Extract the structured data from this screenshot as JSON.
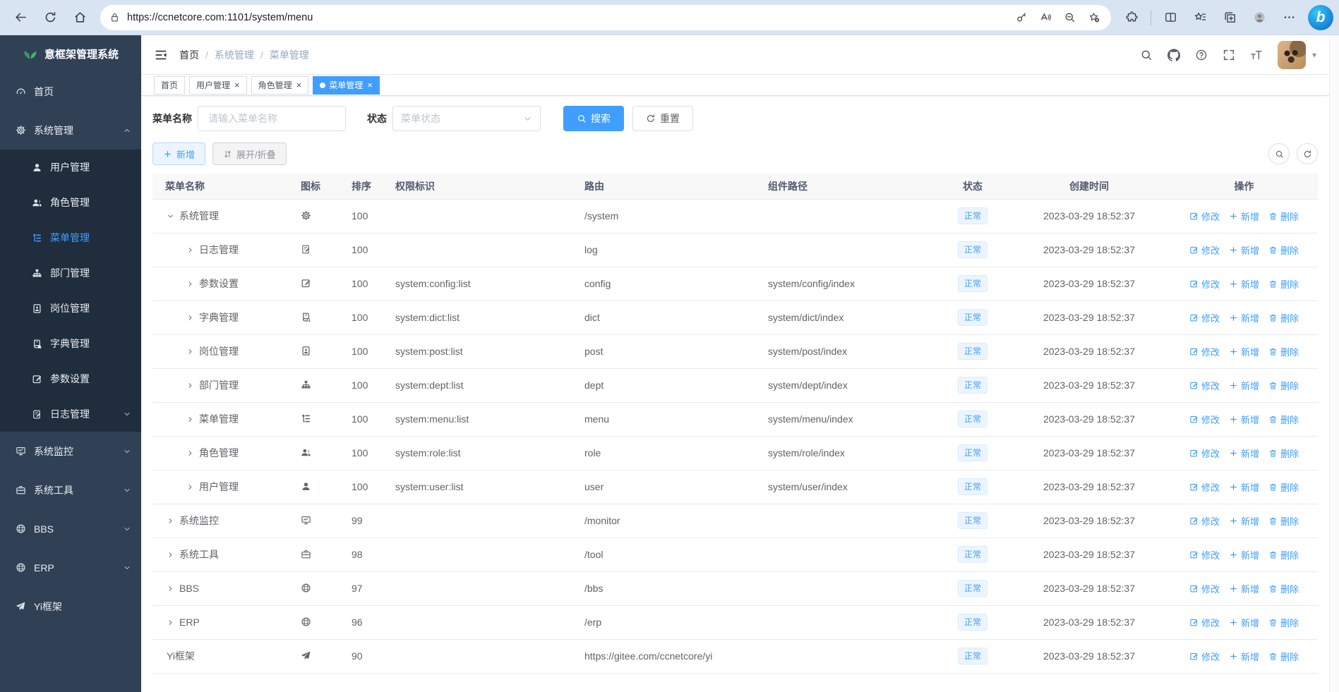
{
  "browser": {
    "url": "https://ccnetcore.com:1101/system/menu",
    "nav_icons": [
      "back-icon",
      "reload-icon",
      "home-icon"
    ],
    "address_lock_icon": "lock-icon",
    "address_icons": [
      "key-icon",
      "read-aloud-icon",
      "zoom-out-icon",
      "add-favorite-icon"
    ],
    "toolbar_icons": [
      "extensions-icon",
      "split-screen-icon",
      "favorites-icon",
      "collections-icon",
      "profile-icon",
      "more-icon"
    ],
    "assistant_icon": "bing-chat-icon"
  },
  "sidebar": {
    "logo_icon": "leaf-icon",
    "title": "意框架管理系统",
    "items": [
      {
        "key": "home",
        "label": "首页",
        "icon": "dashboard-icon",
        "type": "root"
      },
      {
        "key": "system",
        "label": "系统管理",
        "icon": "gear-icon",
        "type": "root",
        "chevron": "up",
        "expanded": true
      },
      {
        "key": "user",
        "label": "用户管理",
        "icon": "user-icon",
        "type": "sub"
      },
      {
        "key": "role",
        "label": "角色管理",
        "icon": "users-icon",
        "type": "sub"
      },
      {
        "key": "menu",
        "label": "菜单管理",
        "icon": "menu-list-icon",
        "type": "sub",
        "active": true
      },
      {
        "key": "dept",
        "label": "部门管理",
        "icon": "org-tree-icon",
        "type": "sub"
      },
      {
        "key": "post",
        "label": "岗位管理",
        "icon": "id-badge-icon",
        "type": "sub"
      },
      {
        "key": "dict",
        "label": "字典管理",
        "icon": "dictionary-icon",
        "type": "sub"
      },
      {
        "key": "config",
        "label": "参数设置",
        "icon": "edit-square-icon",
        "type": "sub"
      },
      {
        "key": "log",
        "label": "日志管理",
        "icon": "log-icon",
        "type": "sub",
        "chevron": "down"
      },
      {
        "key": "monitor",
        "label": "系统监控",
        "icon": "monitor-icon",
        "type": "root",
        "chevron": "down"
      },
      {
        "key": "tool",
        "label": "系统工具",
        "icon": "toolbox-icon",
        "type": "root",
        "chevron": "down"
      },
      {
        "key": "bbs",
        "label": "BBS",
        "icon": "globe-icon",
        "type": "root",
        "chevron": "down"
      },
      {
        "key": "erp",
        "label": "ERP",
        "icon": "globe-icon",
        "type": "root",
        "chevron": "down"
      },
      {
        "key": "yi",
        "label": "Yi框架",
        "icon": "paper-plane-icon",
        "type": "root"
      }
    ]
  },
  "header": {
    "breadcrumb": [
      "首页",
      "系统管理",
      "菜单管理"
    ],
    "action_icons": [
      "search-icon",
      "github-icon",
      "question-icon",
      "fullscreen-icon",
      "font-size-icon"
    ],
    "avatar": "user-avatar",
    "caret_icon": "caret-down-icon"
  },
  "tabs": [
    {
      "key": "home",
      "label": "首页",
      "closable": false,
      "active": false
    },
    {
      "key": "user",
      "label": "用户管理",
      "closable": true,
      "active": false
    },
    {
      "key": "role",
      "label": "角色管理",
      "closable": true,
      "active": false
    },
    {
      "key": "menu",
      "label": "菜单管理",
      "closable": true,
      "active": true
    }
  ],
  "filters": {
    "name_label": "菜单名称",
    "name_placeholder": "请输入菜单名称",
    "name_value": "",
    "status_label": "状态",
    "status_placeholder": "菜单状态",
    "search_label": "搜索",
    "reset_label": "重置"
  },
  "toolbar": {
    "add_label": "新增",
    "toggle_label": "展开/折叠",
    "mini_icons": [
      "search-icon",
      "refresh-icon"
    ]
  },
  "table": {
    "columns": [
      "菜单名称",
      "图标",
      "排序",
      "权限标识",
      "路由",
      "组件路径",
      "状态",
      "创建时间",
      "操作"
    ],
    "row_actions": [
      {
        "key": "edit",
        "label": "修改",
        "icon": "edit-square-icon"
      },
      {
        "key": "add",
        "label": "新增",
        "icon": "plus-icon"
      },
      {
        "key": "delete",
        "label": "删除",
        "icon": "trash-icon"
      }
    ],
    "rows": [
      {
        "name": "系统管理",
        "icon": "gear-icon",
        "order": "100",
        "perms": "",
        "path": "/system",
        "component": "",
        "status": "正常",
        "created": "2023-03-29 18:52:37",
        "level": 0,
        "arrow": "expanded"
      },
      {
        "name": "日志管理",
        "icon": "log-icon",
        "order": "100",
        "perms": "",
        "path": "log",
        "component": "",
        "status": "正常",
        "created": "2023-03-29 18:52:37",
        "level": 1,
        "arrow": "collapsed"
      },
      {
        "name": "参数设置",
        "icon": "edit-square-icon",
        "order": "100",
        "perms": "system:config:list",
        "path": "config",
        "component": "system/config/index",
        "status": "正常",
        "created": "2023-03-29 18:52:37",
        "level": 1,
        "arrow": "collapsed"
      },
      {
        "name": "字典管理",
        "icon": "dictionary-icon",
        "order": "100",
        "perms": "system:dict:list",
        "path": "dict",
        "component": "system/dict/index",
        "status": "正常",
        "created": "2023-03-29 18:52:37",
        "level": 1,
        "arrow": "collapsed"
      },
      {
        "name": "岗位管理",
        "icon": "id-badge-icon",
        "order": "100",
        "perms": "system:post:list",
        "path": "post",
        "component": "system/post/index",
        "status": "正常",
        "created": "2023-03-29 18:52:37",
        "level": 1,
        "arrow": "collapsed"
      },
      {
        "name": "部门管理",
        "icon": "org-tree-icon",
        "order": "100",
        "perms": "system:dept:list",
        "path": "dept",
        "component": "system/dept/index",
        "status": "正常",
        "created": "2023-03-29 18:52:37",
        "level": 1,
        "arrow": "collapsed"
      },
      {
        "name": "菜单管理",
        "icon": "menu-list-icon",
        "order": "100",
        "perms": "system:menu:list",
        "path": "menu",
        "component": "system/menu/index",
        "status": "正常",
        "created": "2023-03-29 18:52:37",
        "level": 1,
        "arrow": "collapsed"
      },
      {
        "name": "角色管理",
        "icon": "users-icon",
        "order": "100",
        "perms": "system:role:list",
        "path": "role",
        "component": "system/role/index",
        "status": "正常",
        "created": "2023-03-29 18:52:37",
        "level": 1,
        "arrow": "collapsed"
      },
      {
        "name": "用户管理",
        "icon": "user-icon",
        "order": "100",
        "perms": "system:user:list",
        "path": "user",
        "component": "system/user/index",
        "status": "正常",
        "created": "2023-03-29 18:52:37",
        "level": 1,
        "arrow": "collapsed"
      },
      {
        "name": "系统监控",
        "icon": "monitor-icon",
        "order": "99",
        "perms": "",
        "path": "/monitor",
        "component": "",
        "status": "正常",
        "created": "2023-03-29 18:52:37",
        "level": 0,
        "arrow": "collapsed"
      },
      {
        "name": "系统工具",
        "icon": "toolbox-icon",
        "order": "98",
        "perms": "",
        "path": "/tool",
        "component": "",
        "status": "正常",
        "created": "2023-03-29 18:52:37",
        "level": 0,
        "arrow": "collapsed"
      },
      {
        "name": "BBS",
        "icon": "globe-icon",
        "order": "97",
        "perms": "",
        "path": "/bbs",
        "component": "",
        "status": "正常",
        "created": "2023-03-29 18:52:37",
        "level": 0,
        "arrow": "collapsed"
      },
      {
        "name": "ERP",
        "icon": "globe-icon",
        "order": "96",
        "perms": "",
        "path": "/erp",
        "component": "",
        "status": "正常",
        "created": "2023-03-29 18:52:37",
        "level": 0,
        "arrow": "collapsed"
      },
      {
        "name": "Yi框架",
        "icon": "paper-plane-icon",
        "order": "90",
        "perms": "",
        "path": "https://gitee.com/ccnetcore/yi",
        "component": "",
        "status": "正常",
        "created": "2023-03-29 18:52:37",
        "level": 0,
        "arrow": "none"
      }
    ]
  },
  "colors": {
    "accent": "#409eff",
    "sidebar_bg": "#304156",
    "sidebar_submenu_bg": "#1f2d3d",
    "active_tab_bg": "#409eff",
    "status_tag_bg": "#ecf5ff",
    "status_tag_text": "#409eff",
    "logo_green": "#3eb370",
    "browser_bar_bg": "#d9e4f3"
  }
}
